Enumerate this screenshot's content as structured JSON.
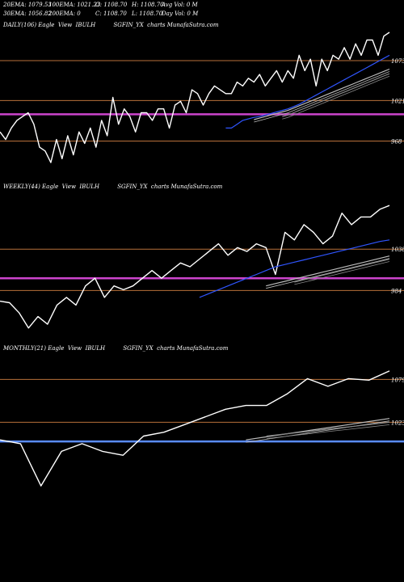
{
  "header": {
    "row1": [
      "20EMA: 1079.53",
      "100EMA: 1021.23",
      "O: 1108.70",
      "H: 1108.70",
      "Avg Vol: 0  M"
    ],
    "row2": [
      "30EMA: 1056.82",
      "200EMA: 0",
      "C: 1108.70",
      "L: 1108.70",
      "Day Vol: 0  M"
    ]
  },
  "chart_data": [
    {
      "type": "line",
      "title": "DAILY(106) Eagle  View  IBULH          SGFIN_YX  charts MunafaSutra.com",
      "levels": [
        {
          "value": 1073,
          "label": "1073",
          "color": "#b8703a"
        },
        {
          "value": 1021,
          "label": "1021",
          "color": "#b8703a"
        },
        {
          "value": 968,
          "label": "968",
          "color": "#b8703a"
        },
        {
          "value": 1003,
          "label": "",
          "color": "#cc44cc"
        }
      ],
      "ylim": [
        920,
        1110
      ],
      "series": [
        {
          "color": "#ffffff",
          "role": "price",
          "values": [
            980,
            970,
            985,
            995,
            1000,
            1005,
            990,
            960,
            955,
            940,
            970,
            945,
            975,
            950,
            980,
            965,
            985,
            960,
            995,
            975,
            1025,
            990,
            1010,
            1000,
            980,
            1005,
            1005,
            995,
            1010,
            1010,
            985,
            1015,
            1020,
            1005,
            1035,
            1030,
            1015,
            1030,
            1040,
            1035,
            1030,
            1030,
            1045,
            1040,
            1050,
            1045,
            1055,
            1040,
            1050,
            1060,
            1045,
            1060,
            1050,
            1080,
            1060,
            1075,
            1040,
            1075,
            1060,
            1080,
            1075,
            1090,
            1075,
            1095,
            1080,
            1100,
            1100,
            1080,
            1105,
            1110
          ]
        },
        {
          "color": "#2f55ff",
          "role": "ema20",
          "values": [
            985,
            985,
            990,
            995,
            997,
            999,
            1000,
            1002,
            1004,
            1006,
            1008,
            1010,
            1013,
            1016,
            1020,
            1024,
            1028,
            1032,
            1036,
            1040,
            1044,
            1048,
            1052,
            1056,
            1060,
            1064,
            1068,
            1072,
            1076,
            1080
          ]
        },
        {
          "color": "#bbbbbb",
          "role": "ema30",
          "values": [
            996,
            998,
            1000,
            1002,
            1004,
            1006,
            1008,
            1011,
            1014,
            1017,
            1020,
            1023,
            1026,
            1029,
            1032,
            1035,
            1038,
            1041,
            1044,
            1047,
            1050,
            1053,
            1056,
            1059,
            1062
          ]
        },
        {
          "color": "#888888",
          "role": "ema100",
          "values": [
            1000,
            1002,
            1005,
            1008,
            1011,
            1014,
            1017,
            1020,
            1023,
            1026,
            1029,
            1032,
            1035,
            1038,
            1041,
            1044,
            1047,
            1050,
            1053,
            1056
          ]
        }
      ]
    },
    {
      "type": "line",
      "title": "WEEKLY(44) Eagle  View  IBULH          SGFIN_YX  charts MunafaSutra.com",
      "levels": [
        {
          "value": 1038,
          "label": "1038",
          "color": "#b8703a"
        },
        {
          "value": 984,
          "label": "984",
          "color": "#b8703a"
        },
        {
          "value": 1000,
          "label": "",
          "color": "#cc44cc"
        }
      ],
      "ylim": [
        920,
        1110
      ],
      "series": [
        {
          "color": "#ffffff",
          "role": "price",
          "values": [
            970,
            968,
            955,
            935,
            950,
            940,
            965,
            975,
            965,
            990,
            1000,
            975,
            990,
            985,
            990,
            1000,
            1010,
            1000,
            1010,
            1020,
            1015,
            1025,
            1035,
            1045,
            1030,
            1040,
            1035,
            1045,
            1040,
            1005,
            1060,
            1050,
            1070,
            1060,
            1045,
            1055,
            1085,
            1070,
            1080,
            1080,
            1090,
            1095
          ]
        },
        {
          "color": "#2f55ff",
          "role": "ema20",
          "values": [
            975,
            980,
            985,
            990,
            995,
            1000,
            1005,
            1010,
            1015,
            1018,
            1021,
            1024,
            1027,
            1030,
            1033,
            1036,
            1039,
            1042,
            1045,
            1048,
            1050
          ]
        },
        {
          "color": "#bbbbbb",
          "role": "ema30",
          "values": [
            990,
            993,
            996,
            999,
            1002,
            1005,
            1008,
            1011,
            1014,
            1017,
            1020,
            1023,
            1026,
            1029
          ]
        },
        {
          "color": "#888888",
          "role": "ema100",
          "values": [
            995,
            998,
            1001,
            1004,
            1007,
            1010,
            1013,
            1016,
            1019,
            1022,
            1025
          ]
        }
      ]
    },
    {
      "type": "line",
      "title": "MONTHLY(21) Eagle  View  IBULH          SGFIN_YX  charts MunafaSutra.com",
      "levels": [
        {
          "value": 1079,
          "label": "1079",
          "color": "#b8703a"
        },
        {
          "value": 1023,
          "label": "1023",
          "color": "#b8703a"
        },
        {
          "value": 998,
          "label": "",
          "color": "#5a8cff"
        }
      ],
      "ylim": [
        920,
        1110
      ],
      "series": [
        {
          "color": "#ffffff",
          "role": "price",
          "values": [
            1000,
            995,
            940,
            985,
            995,
            985,
            980,
            1005,
            1010,
            1020,
            1030,
            1040,
            1045,
            1045,
            1060,
            1080,
            1070,
            1080,
            1078,
            1090
          ]
        },
        {
          "color": "#bbbbbb",
          "role": "ema30",
          "values": [
            1000,
            1004,
            1008,
            1012,
            1016,
            1020,
            1024,
            1028
          ]
        },
        {
          "color": "#888888",
          "role": "ema100",
          "values": [
            1005,
            1008,
            1011,
            1014,
            1017,
            1020,
            1023
          ]
        }
      ]
    }
  ]
}
